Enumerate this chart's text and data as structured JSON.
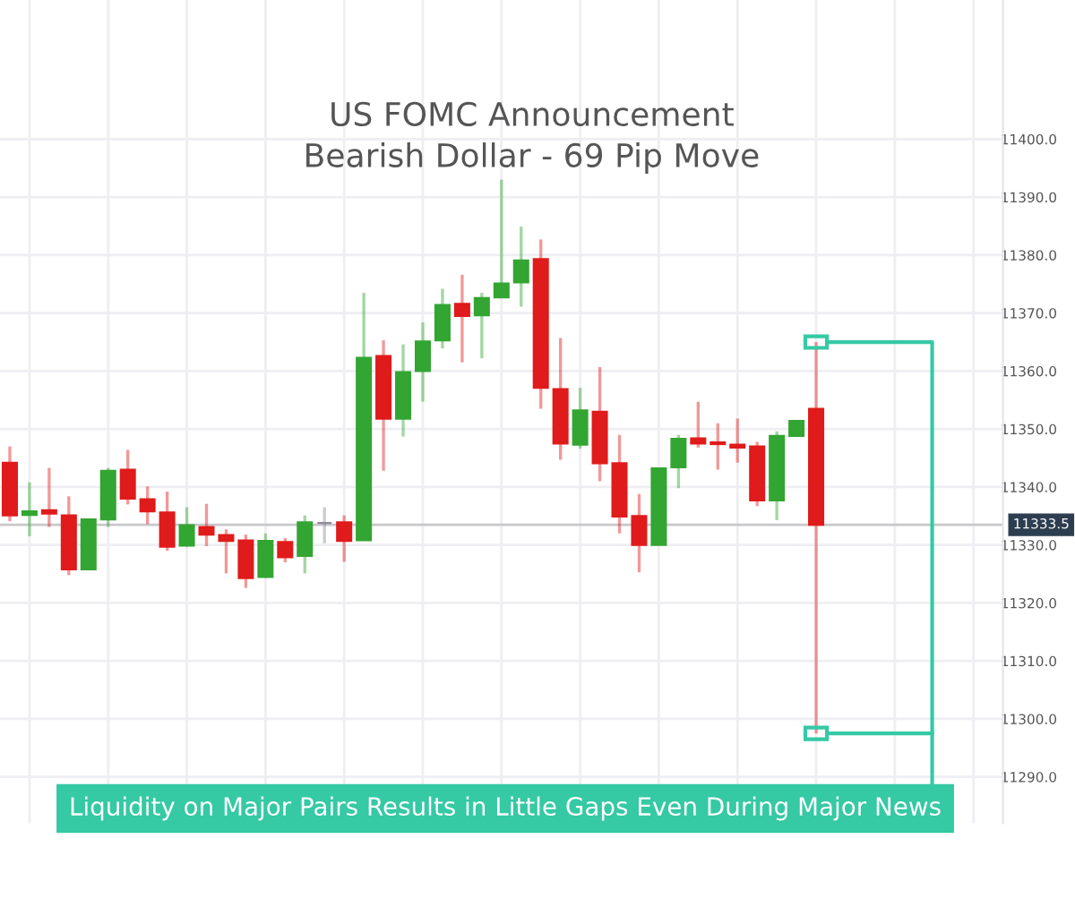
{
  "chart_data": {
    "type": "candlestick",
    "title": "US FOMC Announcement",
    "subtitle": "Bearish Dollar - 69 Pip Move",
    "annotations": [
      "Liquidity on Major Pairs Results in Little Gaps Even During Major News"
    ],
    "categories": [
      null,
      null,
      null,
      null,
      null,
      null,
      null,
      null,
      null,
      null,
      null,
      null,
      null,
      null,
      null,
      null,
      null,
      null,
      null,
      null,
      null,
      null,
      null,
      null,
      null,
      null,
      null,
      null,
      null,
      null,
      null,
      null,
      null,
      null,
      null,
      null,
      null,
      null,
      null,
      null,
      null,
      null,
      null,
      null,
      null,
      null,
      null,
      null,
      null,
      null,
      null
    ],
    "ohlc": [
      [
        11344.2,
        11347.0,
        11334.1,
        11335.1
      ],
      [
        11335.2,
        11340.8,
        11331.5,
        11335.8
      ],
      [
        11336.0,
        11343.3,
        11333.1,
        11335.4
      ],
      [
        11335.1,
        11338.4,
        11324.8,
        11325.8
      ],
      [
        11325.8,
        11334.4,
        11325.8,
        11334.4
      ],
      [
        11334.4,
        11343.3,
        11333.1,
        11342.8
      ],
      [
        11343.0,
        11346.4,
        11337.0,
        11338.0
      ],
      [
        11337.9,
        11340.1,
        11333.6,
        11335.8
      ],
      [
        11335.6,
        11339.2,
        11329.0,
        11329.7
      ],
      [
        11329.9,
        11336.5,
        11329.7,
        11333.4
      ],
      [
        11333.1,
        11337.1,
        11329.8,
        11331.8
      ],
      [
        11331.7,
        11332.7,
        11325.1,
        11330.7
      ],
      [
        11330.8,
        11331.8,
        11322.6,
        11324.3
      ],
      [
        11324.5,
        11332.0,
        11324.3,
        11330.7
      ],
      [
        11330.5,
        11331.2,
        11327.0,
        11327.9
      ],
      [
        11328.1,
        11335.1,
        11325.1,
        11333.9
      ],
      [
        11333.8,
        11336.5,
        11330.3,
        11333.8
      ],
      [
        11333.9,
        11335.1,
        11327.1,
        11330.7
      ],
      [
        11330.8,
        11373.5,
        11330.8,
        11362.3
      ],
      [
        11362.6,
        11365.3,
        11342.8,
        11351.8
      ],
      [
        11351.8,
        11364.6,
        11348.7,
        11359.8
      ],
      [
        11360.0,
        11368.4,
        11354.7,
        11365.1
      ],
      [
        11365.3,
        11374.2,
        11363.9,
        11371.4
      ],
      [
        11371.6,
        11376.6,
        11361.5,
        11369.5
      ],
      [
        11369.6,
        11373.5,
        11362.2,
        11372.6
      ],
      [
        11372.7,
        11393.0,
        11372.6,
        11375.1
      ],
      [
        11375.3,
        11384.9,
        11371.1,
        11379.1
      ],
      [
        11379.3,
        11382.7,
        11353.5,
        11357.1
      ],
      [
        11356.9,
        11365.7,
        11344.7,
        11347.5
      ],
      [
        11347.3,
        11357.1,
        11346.6,
        11353.2
      ],
      [
        11353.0,
        11360.7,
        11341.0,
        11344.1
      ],
      [
        11344.1,
        11349.0,
        11332.0,
        11334.9
      ],
      [
        11335.0,
        11338.8,
        11325.3,
        11330.0
      ],
      [
        11330.0,
        11343.2,
        11330.0,
        11343.2
      ],
      [
        11343.4,
        11349.0,
        11339.8,
        11348.3
      ],
      [
        11348.4,
        11354.7,
        11346.8,
        11347.5
      ],
      [
        11347.7,
        11351.0,
        11343.0,
        11347.4
      ],
      [
        11347.3,
        11351.8,
        11344.2,
        11346.8
      ],
      [
        11347.0,
        11347.8,
        11336.7,
        11337.7
      ],
      [
        11337.7,
        11349.6,
        11334.3,
        11348.8
      ],
      [
        11348.8,
        11351.4,
        11348.8,
        11351.4
      ],
      [
        11353.5,
        11365.0,
        11297.5,
        11333.5
      ],
      null,
      null,
      null,
      null,
      null,
      null,
      null,
      null,
      null
    ],
    "colors": [
      "#e01b1b",
      "#33a532",
      "#e01b1b",
      "#e01b1b",
      "#33a532",
      "#33a532",
      "#e01b1b",
      "#e01b1b",
      "#e01b1b",
      "#33a532",
      "#e01b1b",
      "#e01b1b",
      "#e01b1b",
      "#33a532",
      "#e01b1b",
      "#33a532",
      "#8c8c99",
      "#e01b1b",
      "#33a532",
      "#e01b1b",
      "#33a532",
      "#33a532",
      "#33a532",
      "#e01b1b",
      "#33a532",
      "#33a532",
      "#33a532",
      "#e01b1b",
      "#e01b1b",
      "#33a532",
      "#e01b1b",
      "#e01b1b",
      "#e01b1b",
      "#33a532",
      "#33a532",
      "#e01b1b",
      "#e01b1b",
      "#e01b1b",
      "#e01b1b",
      "#33a532",
      "#33a532",
      "#e01b1b",
      null,
      null,
      null,
      null,
      null,
      null,
      null,
      null,
      null
    ],
    "ylim": [
      11282,
      11424
    ],
    "yticks": [
      {
        "value": 11290,
        "label": "11290.0"
      },
      {
        "value": 11300,
        "label": "11300.0"
      },
      {
        "value": 11310,
        "label": "11310.0"
      },
      {
        "value": 11320,
        "label": "11320.0"
      },
      {
        "value": 11330,
        "label": "11330.0"
      },
      {
        "value": 11340,
        "label": "11340.0"
      },
      {
        "value": 11350,
        "label": "11350.0"
      },
      {
        "value": 11360,
        "label": "11360.0"
      },
      {
        "value": 11370,
        "label": "11370.0"
      },
      {
        "value": 11380,
        "label": "11380.0"
      },
      {
        "value": 11390,
        "label": "11390.0"
      },
      {
        "value": 11400,
        "label": "11400.0"
      }
    ],
    "ref_lines": [
      {
        "axis": "y",
        "value": 11333.5,
        "label": "11333.5",
        "color": "#c8c8cc"
      }
    ],
    "grid": true,
    "tick_labels": "y"
  }
}
